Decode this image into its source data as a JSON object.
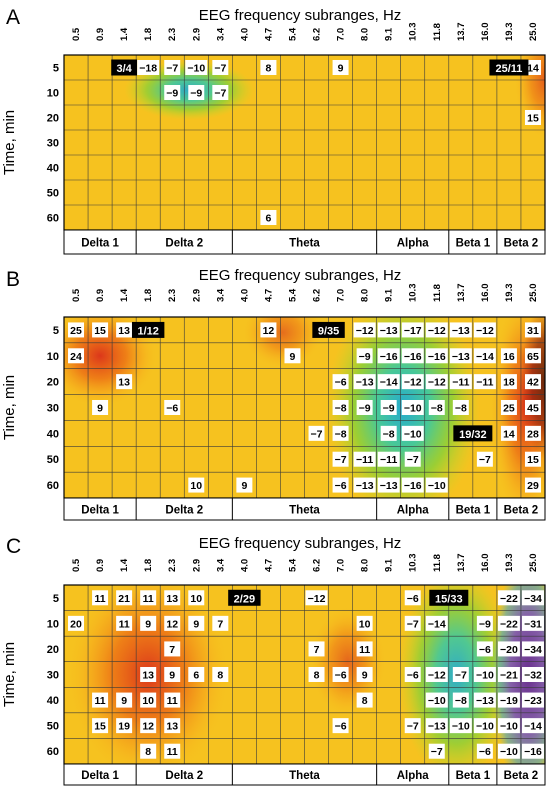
{
  "chart_data": [
    {
      "panel_label": "A",
      "type": "heatmap",
      "title": "EEG frequency subranges, Hz",
      "ylabel": "Time, min",
      "columns": [
        "0.5",
        "0.9",
        "1.4",
        "1.8",
        "2.3",
        "2.9",
        "3.4",
        "4.0",
        "4.7",
        "5.4",
        "6.2",
        "7.0",
        "8.0",
        "9.1",
        "10.3",
        "11.8",
        "13.7",
        "16.0",
        "19.3",
        "25.0"
      ],
      "rows": [
        "5",
        "10",
        "20",
        "30",
        "40",
        "50",
        "60"
      ],
      "bands": [
        {
          "label": "Delta 1",
          "from": 0,
          "to": 2
        },
        {
          "label": "Delta 2",
          "from": 3,
          "to": 6
        },
        {
          "label": "Theta",
          "from": 7,
          "to": 12
        },
        {
          "label": "Alpha",
          "from": 13,
          "to": 15
        },
        {
          "label": "Beta 1",
          "from": 16,
          "to": 17
        },
        {
          "label": "Beta 2",
          "from": 18,
          "to": 19
        }
      ],
      "cells": [
        {
          "r": 0,
          "c": 3,
          "t": "−18"
        },
        {
          "r": 0,
          "c": 4,
          "t": "−7"
        },
        {
          "r": 0,
          "c": 5,
          "t": "−10"
        },
        {
          "r": 0,
          "c": 6,
          "t": "−7"
        },
        {
          "r": 0,
          "c": 8,
          "t": "8"
        },
        {
          "r": 0,
          "c": 11,
          "t": "9"
        },
        {
          "r": 0,
          "c": 19,
          "t": "14"
        },
        {
          "r": 1,
          "c": 4,
          "t": "−9"
        },
        {
          "r": 1,
          "c": 5,
          "t": "−9"
        },
        {
          "r": 1,
          "c": 6,
          "t": "−7"
        },
        {
          "r": 2,
          "c": 19,
          "t": "15"
        },
        {
          "r": 6,
          "c": 8,
          "t": "6"
        }
      ],
      "markers": [
        {
          "text": "3/4",
          "r": 0,
          "c": 2
        },
        {
          "text": "25/11",
          "r": 0,
          "c": 18
        }
      ],
      "blobs": [
        {
          "kind": "cool",
          "r": 0.9,
          "c": 4.7,
          "rr": 1.2,
          "rc": 2.7,
          "a": 0.9
        },
        {
          "kind": "hot",
          "r": 0.5,
          "c": 19.5,
          "rr": 2.4,
          "rc": 1.3,
          "a": 0.65
        }
      ]
    },
    {
      "panel_label": "B",
      "type": "heatmap",
      "title": "EEG frequency subranges, Hz",
      "ylabel": "Time, min",
      "columns": [
        "0.5",
        "0.9",
        "1.4",
        "1.8",
        "2.3",
        "2.9",
        "3.4",
        "4.0",
        "4.7",
        "5.4",
        "6.2",
        "7.0",
        "8.0",
        "9.1",
        "10.3",
        "11.8",
        "13.7",
        "16.0",
        "19.3",
        "25.0"
      ],
      "rows": [
        "5",
        "10",
        "20",
        "30",
        "40",
        "50",
        "60"
      ],
      "bands": [
        {
          "label": "Delta 1",
          "from": 0,
          "to": 2
        },
        {
          "label": "Delta 2",
          "from": 3,
          "to": 6
        },
        {
          "label": "Theta",
          "from": 7,
          "to": 12
        },
        {
          "label": "Alpha",
          "from": 13,
          "to": 15
        },
        {
          "label": "Beta 1",
          "from": 16,
          "to": 17
        },
        {
          "label": "Beta 2",
          "from": 18,
          "to": 19
        }
      ],
      "cells": [
        {
          "r": 0,
          "c": 0,
          "t": "25"
        },
        {
          "r": 0,
          "c": 1,
          "t": "15"
        },
        {
          "r": 0,
          "c": 2,
          "t": "13"
        },
        {
          "r": 0,
          "c": 8,
          "t": "12"
        },
        {
          "r": 0,
          "c": 12,
          "t": "−12"
        },
        {
          "r": 0,
          "c": 13,
          "t": "−13"
        },
        {
          "r": 0,
          "c": 14,
          "t": "−17"
        },
        {
          "r": 0,
          "c": 15,
          "t": "−12"
        },
        {
          "r": 0,
          "c": 16,
          "t": "−13"
        },
        {
          "r": 0,
          "c": 17,
          "t": "−12"
        },
        {
          "r": 0,
          "c": 19,
          "t": "31"
        },
        {
          "r": 1,
          "c": 0,
          "t": "24"
        },
        {
          "r": 1,
          "c": 9,
          "t": "9"
        },
        {
          "r": 1,
          "c": 12,
          "t": "−9"
        },
        {
          "r": 1,
          "c": 13,
          "t": "−16"
        },
        {
          "r": 1,
          "c": 14,
          "t": "−16"
        },
        {
          "r": 1,
          "c": 15,
          "t": "−16"
        },
        {
          "r": 1,
          "c": 16,
          "t": "−13"
        },
        {
          "r": 1,
          "c": 17,
          "t": "−14"
        },
        {
          "r": 1,
          "c": 18,
          "t": "16"
        },
        {
          "r": 1,
          "c": 19,
          "t": "65"
        },
        {
          "r": 2,
          "c": 2,
          "t": "13"
        },
        {
          "r": 2,
          "c": 11,
          "t": "−6"
        },
        {
          "r": 2,
          "c": 12,
          "t": "−13"
        },
        {
          "r": 2,
          "c": 13,
          "t": "−14"
        },
        {
          "r": 2,
          "c": 14,
          "t": "−12"
        },
        {
          "r": 2,
          "c": 15,
          "t": "−12"
        },
        {
          "r": 2,
          "c": 16,
          "t": "−11"
        },
        {
          "r": 2,
          "c": 17,
          "t": "−11"
        },
        {
          "r": 2,
          "c": 18,
          "t": "18"
        },
        {
          "r": 2,
          "c": 19,
          "t": "42"
        },
        {
          "r": 3,
          "c": 1,
          "t": "9"
        },
        {
          "r": 3,
          "c": 4,
          "t": "−6"
        },
        {
          "r": 3,
          "c": 11,
          "t": "−8"
        },
        {
          "r": 3,
          "c": 12,
          "t": "−9"
        },
        {
          "r": 3,
          "c": 13,
          "t": "−9"
        },
        {
          "r": 3,
          "c": 14,
          "t": "−10"
        },
        {
          "r": 3,
          "c": 15,
          "t": "−8"
        },
        {
          "r": 3,
          "c": 16,
          "t": "−8"
        },
        {
          "r": 3,
          "c": 18,
          "t": "25"
        },
        {
          "r": 3,
          "c": 19,
          "t": "45"
        },
        {
          "r": 4,
          "c": 10,
          "t": "−7"
        },
        {
          "r": 4,
          "c": 11,
          "t": "−8"
        },
        {
          "r": 4,
          "c": 13,
          "t": "−8"
        },
        {
          "r": 4,
          "c": 14,
          "t": "−10"
        },
        {
          "r": 4,
          "c": 18,
          "t": "14"
        },
        {
          "r": 4,
          "c": 19,
          "t": "28"
        },
        {
          "r": 5,
          "c": 11,
          "t": "−7"
        },
        {
          "r": 5,
          "c": 12,
          "t": "−11"
        },
        {
          "r": 5,
          "c": 13,
          "t": "−11"
        },
        {
          "r": 5,
          "c": 14,
          "t": "−7"
        },
        {
          "r": 5,
          "c": 17,
          "t": "−7"
        },
        {
          "r": 5,
          "c": 19,
          "t": "15"
        },
        {
          "r": 6,
          "c": 5,
          "t": "10"
        },
        {
          "r": 6,
          "c": 7,
          "t": "9"
        },
        {
          "r": 6,
          "c": 11,
          "t": "−6"
        },
        {
          "r": 6,
          "c": 12,
          "t": "−13"
        },
        {
          "r": 6,
          "c": 13,
          "t": "−13"
        },
        {
          "r": 6,
          "c": 14,
          "t": "−16"
        },
        {
          "r": 6,
          "c": 15,
          "t": "−10"
        },
        {
          "r": 6,
          "c": 19,
          "t": "29"
        }
      ],
      "markers": [
        {
          "text": "1/12",
          "r": 0,
          "c": 3
        },
        {
          "text": "9/35",
          "r": 0,
          "c": 10.5
        },
        {
          "text": "19/32",
          "r": 4,
          "c": 16.5
        }
      ],
      "blobs": [
        {
          "kind": "hot",
          "r": 1.0,
          "c": 1.0,
          "rr": 2.0,
          "rc": 2.4,
          "a": 0.9
        },
        {
          "kind": "hot",
          "r": 0.1,
          "c": 8.6,
          "rr": 1.4,
          "rc": 1.7,
          "a": 0.55
        },
        {
          "kind": "cool",
          "r": 3.0,
          "c": 13.6,
          "rr": 4.4,
          "rc": 3.2,
          "a": 0.95
        },
        {
          "kind": "hot",
          "r": 3.0,
          "c": 18.7,
          "rr": 4.5,
          "rc": 1.5,
          "a": 0.9
        },
        {
          "kind": "dark",
          "r": 2.0,
          "c": 19.5,
          "rr": 3.0,
          "rc": 1.0,
          "a": 0.75
        }
      ]
    },
    {
      "panel_label": "C",
      "type": "heatmap",
      "title": "EEG frequency subranges, Hz",
      "ylabel": "Time, min",
      "columns": [
        "0.5",
        "0.9",
        "1.4",
        "1.8",
        "2.3",
        "2.9",
        "3.4",
        "4.0",
        "4.7",
        "5.4",
        "6.2",
        "7.0",
        "8.0",
        "9.1",
        "10.3",
        "11.8",
        "13.7",
        "16.0",
        "19.3",
        "25.0"
      ],
      "rows": [
        "5",
        "10",
        "20",
        "30",
        "40",
        "50",
        "60"
      ],
      "bands": [
        {
          "label": "Delta 1",
          "from": 0,
          "to": 2
        },
        {
          "label": "Delta 2",
          "from": 3,
          "to": 6
        },
        {
          "label": "Theta",
          "from": 7,
          "to": 12
        },
        {
          "label": "Alpha",
          "from": 13,
          "to": 15
        },
        {
          "label": "Beta 1",
          "from": 16,
          "to": 17
        },
        {
          "label": "Beta 2",
          "from": 18,
          "to": 19
        }
      ],
      "cells": [
        {
          "r": 0,
          "c": 1,
          "t": "11"
        },
        {
          "r": 0,
          "c": 2,
          "t": "21"
        },
        {
          "r": 0,
          "c": 3,
          "t": "11"
        },
        {
          "r": 0,
          "c": 4,
          "t": "13"
        },
        {
          "r": 0,
          "c": 5,
          "t": "10"
        },
        {
          "r": 0,
          "c": 10,
          "t": "−12"
        },
        {
          "r": 0,
          "c": 14,
          "t": "−6"
        },
        {
          "r": 0,
          "c": 18,
          "t": "−22"
        },
        {
          "r": 0,
          "c": 19,
          "t": "−34"
        },
        {
          "r": 1,
          "c": 0,
          "t": "20"
        },
        {
          "r": 1,
          "c": 2,
          "t": "11"
        },
        {
          "r": 1,
          "c": 3,
          "t": "9"
        },
        {
          "r": 1,
          "c": 4,
          "t": "12"
        },
        {
          "r": 1,
          "c": 5,
          "t": "9"
        },
        {
          "r": 1,
          "c": 6,
          "t": "7"
        },
        {
          "r": 1,
          "c": 12,
          "t": "10"
        },
        {
          "r": 1,
          "c": 14,
          "t": "−7"
        },
        {
          "r": 1,
          "c": 15,
          "t": "−14"
        },
        {
          "r": 1,
          "c": 17,
          "t": "−9"
        },
        {
          "r": 1,
          "c": 18,
          "t": "−22"
        },
        {
          "r": 1,
          "c": 19,
          "t": "−31"
        },
        {
          "r": 2,
          "c": 4,
          "t": "7"
        },
        {
          "r": 2,
          "c": 10,
          "t": "7"
        },
        {
          "r": 2,
          "c": 12,
          "t": "11"
        },
        {
          "r": 2,
          "c": 17,
          "t": "−6"
        },
        {
          "r": 2,
          "c": 18,
          "t": "−20"
        },
        {
          "r": 2,
          "c": 19,
          "t": "−34"
        },
        {
          "r": 3,
          "c": 3,
          "t": "13"
        },
        {
          "r": 3,
          "c": 4,
          "t": "9"
        },
        {
          "r": 3,
          "c": 5,
          "t": "6"
        },
        {
          "r": 3,
          "c": 6,
          "t": "8"
        },
        {
          "r": 3,
          "c": 10,
          "t": "8"
        },
        {
          "r": 3,
          "c": 11,
          "t": "−6"
        },
        {
          "r": 3,
          "c": 12,
          "t": "9"
        },
        {
          "r": 3,
          "c": 14,
          "t": "−6"
        },
        {
          "r": 3,
          "c": 15,
          "t": "−12"
        },
        {
          "r": 3,
          "c": 16,
          "t": "−7"
        },
        {
          "r": 3,
          "c": 17,
          "t": "−10"
        },
        {
          "r": 3,
          "c": 18,
          "t": "−21"
        },
        {
          "r": 3,
          "c": 19,
          "t": "−32"
        },
        {
          "r": 4,
          "c": 1,
          "t": "11"
        },
        {
          "r": 4,
          "c": 2,
          "t": "9"
        },
        {
          "r": 4,
          "c": 3,
          "t": "10"
        },
        {
          "r": 4,
          "c": 4,
          "t": "11"
        },
        {
          "r": 4,
          "c": 12,
          "t": "8"
        },
        {
          "r": 4,
          "c": 15,
          "t": "−10"
        },
        {
          "r": 4,
          "c": 16,
          "t": "−8"
        },
        {
          "r": 4,
          "c": 17,
          "t": "−13"
        },
        {
          "r": 4,
          "c": 18,
          "t": "−19"
        },
        {
          "r": 4,
          "c": 19,
          "t": "−23"
        },
        {
          "r": 5,
          "c": 1,
          "t": "15"
        },
        {
          "r": 5,
          "c": 2,
          "t": "19"
        },
        {
          "r": 5,
          "c": 3,
          "t": "12"
        },
        {
          "r": 5,
          "c": 4,
          "t": "13"
        },
        {
          "r": 5,
          "c": 11,
          "t": "−6"
        },
        {
          "r": 5,
          "c": 14,
          "t": "−7"
        },
        {
          "r": 5,
          "c": 15,
          "t": "−13"
        },
        {
          "r": 5,
          "c": 16,
          "t": "−10"
        },
        {
          "r": 5,
          "c": 17,
          "t": "−10"
        },
        {
          "r": 5,
          "c": 18,
          "t": "−10"
        },
        {
          "r": 5,
          "c": 19,
          "t": "−14"
        },
        {
          "r": 6,
          "c": 3,
          "t": "8"
        },
        {
          "r": 6,
          "c": 4,
          "t": "11"
        },
        {
          "r": 6,
          "c": 15,
          "t": "−7"
        },
        {
          "r": 6,
          "c": 17,
          "t": "−6"
        },
        {
          "r": 6,
          "c": 18,
          "t": "−10"
        },
        {
          "r": 6,
          "c": 19,
          "t": "−16"
        }
      ],
      "markers": [
        {
          "text": "2/29",
          "r": 0,
          "c": 7
        },
        {
          "text": "15/33",
          "r": 0,
          "c": 15.5
        }
      ],
      "blobs": [
        {
          "kind": "hot",
          "r": 3.0,
          "c": 3.0,
          "rr": 4.2,
          "rc": 3.4,
          "a": 0.9
        },
        {
          "kind": "hot",
          "r": 2.5,
          "c": 11.3,
          "rr": 2.2,
          "rc": 1.6,
          "a": 0.6
        },
        {
          "kind": "cool",
          "r": 3.0,
          "c": 15.8,
          "rr": 4.2,
          "rc": 2.4,
          "a": 0.9
        },
        {
          "kind": "violet",
          "r": 3.0,
          "c": 18.8,
          "rr": 4.6,
          "rc": 1.5,
          "a": 0.9
        }
      ]
    }
  ]
}
